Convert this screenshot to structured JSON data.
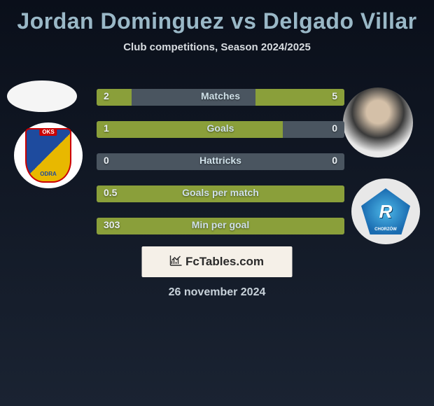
{
  "title": "Jordan Dominguez vs Delgado Villar",
  "subtitle": "Club competitions, Season 2024/2025",
  "date": "26 november 2024",
  "branding": "FcTables.com",
  "colors": {
    "bar_fill": "#8a9f3a",
    "bar_bg": "#4a5560",
    "title": "#9ab8c7",
    "text": "#d8dce0"
  },
  "stats": [
    {
      "label": "Matches",
      "left_val": "2",
      "right_val": "5",
      "left_pct": 14,
      "right_pct": 36
    },
    {
      "label": "Goals",
      "left_val": "1",
      "right_val": "0",
      "left_pct": 75,
      "right_pct": 0
    },
    {
      "label": "Hattricks",
      "left_val": "0",
      "right_val": "0",
      "left_pct": 0,
      "right_pct": 0
    },
    {
      "label": "Goals per match",
      "left_val": "0.5",
      "right_val": "",
      "left_pct": 100,
      "right_pct": 0
    },
    {
      "label": "Min per goal",
      "left_val": "303",
      "right_val": "",
      "left_pct": 100,
      "right_pct": 0
    }
  ]
}
